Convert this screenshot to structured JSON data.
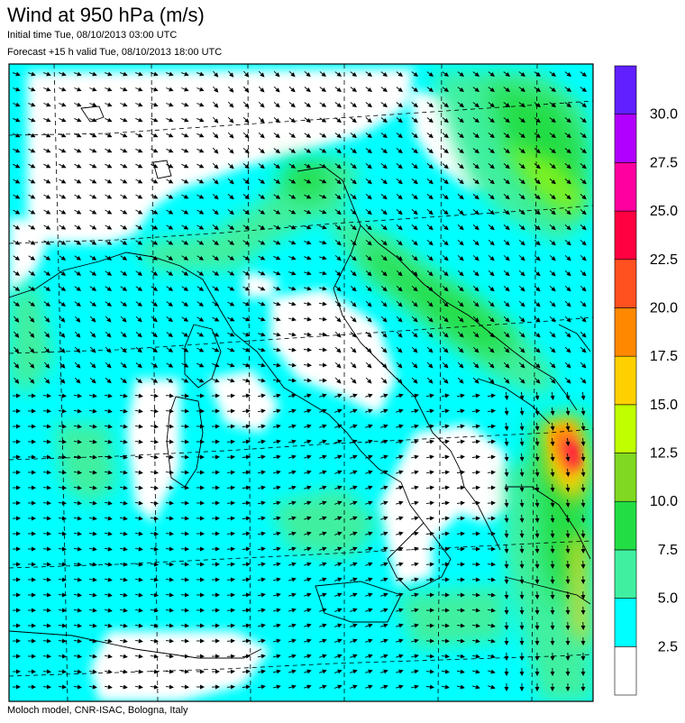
{
  "header": {
    "title": "Wind at 950 hPa (m/s)",
    "initial_time": "Initial time  Tue, 08/10/2013 03:00 UTC",
    "forecast_valid": "Forecast +15 h valid  Tue, 08/10/2013 18:00 UTC"
  },
  "footer": {
    "credit": "Moloch model, CNR-ISAC, Bologna, Italy"
  },
  "legend": {
    "unit": "m/s",
    "levels": [
      {
        "label": "2.5",
        "color": "#ffffff"
      },
      {
        "label": "5.0",
        "color": "#00ffff"
      },
      {
        "label": "7.5",
        "color": "#40f0a0"
      },
      {
        "label": "10.0",
        "color": "#22dd44"
      },
      {
        "label": "12.5",
        "color": "#80d820"
      },
      {
        "label": "15.0",
        "color": "#c0ff00"
      },
      {
        "label": "17.5",
        "color": "#ffd000"
      },
      {
        "label": "20.0",
        "color": "#ff8800"
      },
      {
        "label": "22.5",
        "color": "#ff5020"
      },
      {
        "label": "25.0",
        "color": "#ff0040"
      },
      {
        "label": "27.5",
        "color": "#ff00a0"
      },
      {
        "label": "30.0",
        "color": "#b000ff"
      },
      {
        "label": "",
        "color": "#6020ff"
      }
    ]
  }
}
